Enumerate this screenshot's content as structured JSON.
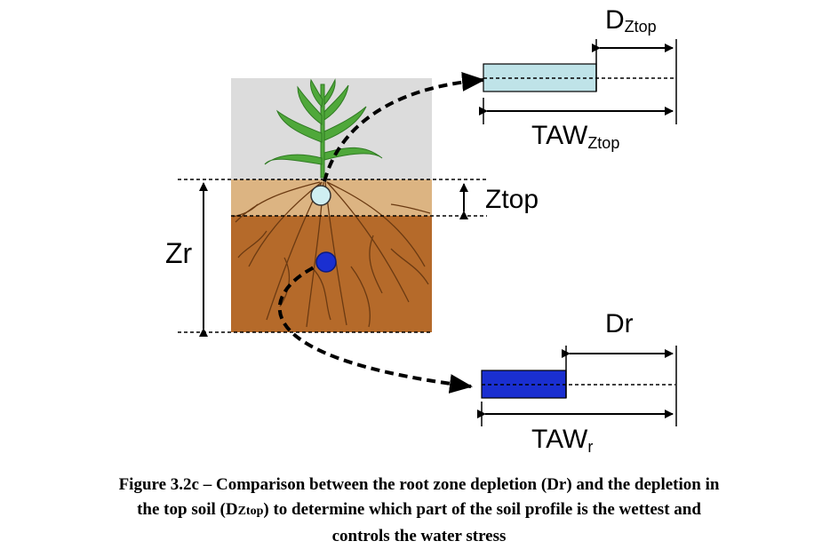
{
  "diagram": {
    "labels": {
      "d_ztop_main": "D",
      "d_ztop_sub": "Ztop",
      "taw_ztop_main": "TAW",
      "taw_ztop_sub": "Ztop",
      "ztop": "Ztop",
      "zr": "Zr",
      "dr": "Dr",
      "taw_r_main": "TAW",
      "taw_r_sub": "r"
    },
    "colors": {
      "sky": "#dcdcdc",
      "topsoil": "#dcb482",
      "rootzone": "#b56a2a",
      "roots": "#6b3a12",
      "plant": "#4fa83a",
      "top_bar": "#bfe3e8",
      "root_bar": "#1a2fd1",
      "top_bulb": "#cfeff2",
      "root_bulb": "#1a2fd1"
    }
  },
  "caption": {
    "line1": "Figure 3.2c – Comparison between the root zone depletion (Dr) and the depletion in",
    "line2_pre": "the top soil (D",
    "line2_sub": "Ztop",
    "line2_post": ") to determine which part of the soil profile is the wettest and",
    "line3": "controls the water stress"
  }
}
